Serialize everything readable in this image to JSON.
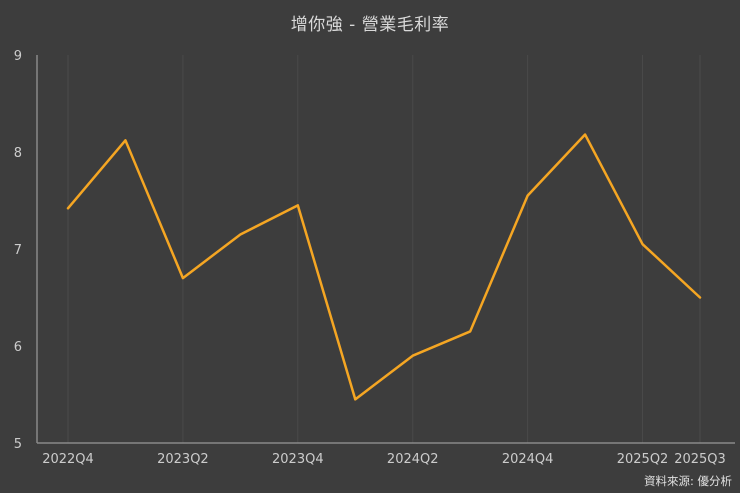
{
  "title": "增你強 - 營業毛利率",
  "source": "資料來源: 優分析",
  "colors": {
    "background": "#3d3d3d",
    "line": "#f5a623",
    "axis": "#8a8a8a",
    "grid": "#4a4a4a",
    "tick_text": "#cccccc",
    "title_text": "#d9d9d9"
  },
  "chart_data": {
    "type": "line",
    "title": "增你強 - 營業毛利率",
    "x": [
      "2022Q4",
      "2023Q1",
      "2023Q2",
      "2023Q3",
      "2023Q4",
      "2024Q1",
      "2024Q2",
      "2024Q3",
      "2024Q4",
      "2025Q1",
      "2025Q2",
      "2025Q3"
    ],
    "values": [
      7.42,
      8.12,
      6.7,
      7.15,
      7.45,
      5.45,
      5.9,
      6.15,
      7.55,
      8.18,
      7.05,
      6.5
    ],
    "x_tick_labels": [
      "2022Q4",
      "2023Q2",
      "2023Q4",
      "2024Q2",
      "2024Q4",
      "2025Q2",
      "2025Q3"
    ],
    "y_ticks": [
      5,
      6,
      7,
      8,
      9
    ],
    "ylim": [
      5,
      9
    ],
    "xlabel": "",
    "ylabel": "",
    "grid": "vertical",
    "legend": "none",
    "annotation": "資料來源: 優分析"
  }
}
